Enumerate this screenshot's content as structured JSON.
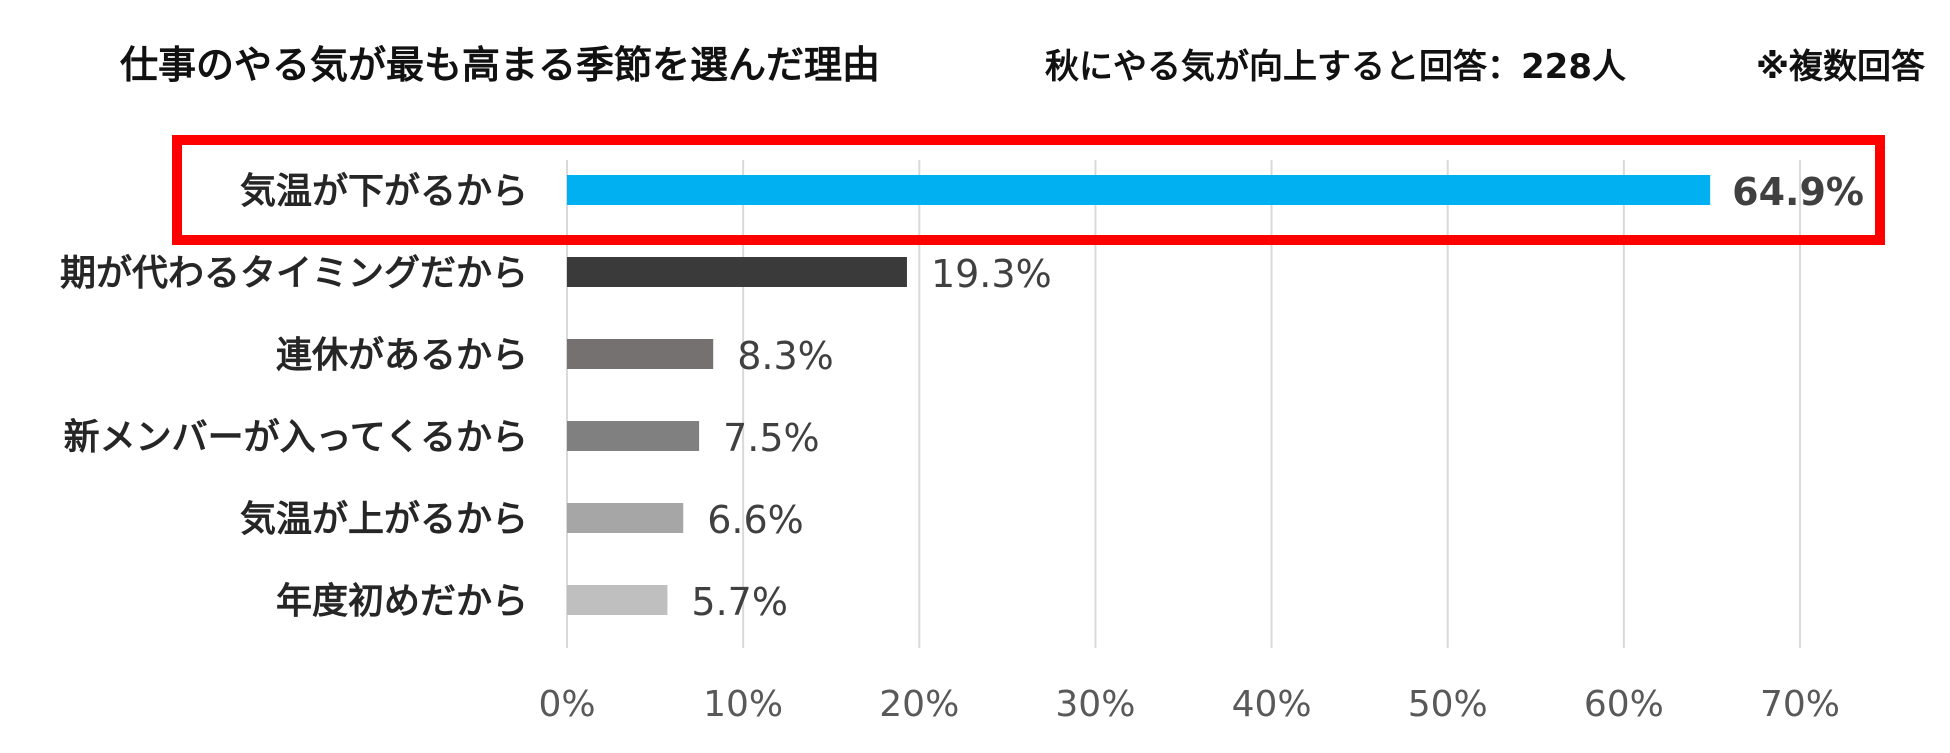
{
  "header": {
    "title": "仕事のやる気が最も高まる季節を選んだ理由",
    "subtitle": "秋にやる気が向上すると回答：228人",
    "note": "※複数回答"
  },
  "chart_data": {
    "type": "bar",
    "orientation": "horizontal",
    "categories": [
      "気温が下がるから",
      "期が代わるタイミングだから",
      "連休があるから",
      "新メンバーが入ってくるから",
      "気温が上がるから",
      "年度初めだから"
    ],
    "values": [
      64.9,
      19.3,
      8.3,
      7.5,
      6.6,
      5.7
    ],
    "value_labels": [
      "64.9%",
      "19.3%",
      "8.3%",
      "7.5%",
      "6.6%",
      "5.7%"
    ],
    "bar_colors": [
      "#00b0f0",
      "#3a3a3a",
      "#767171",
      "#808080",
      "#a6a6a6",
      "#bfbfbf"
    ],
    "highlight_index": 0,
    "highlight_box_color": "#ff0000",
    "highlight_label_color": "#1f72c4",
    "xlim": [
      0,
      70
    ],
    "xticks": [
      0,
      10,
      20,
      30,
      40,
      50,
      60,
      70
    ],
    "xtick_labels": [
      "0%",
      "10%",
      "20%",
      "30%",
      "40%",
      "50%",
      "60%",
      "70%"
    ],
    "grid": true,
    "grid_color": "#d9d9d9",
    "legend": "none"
  }
}
